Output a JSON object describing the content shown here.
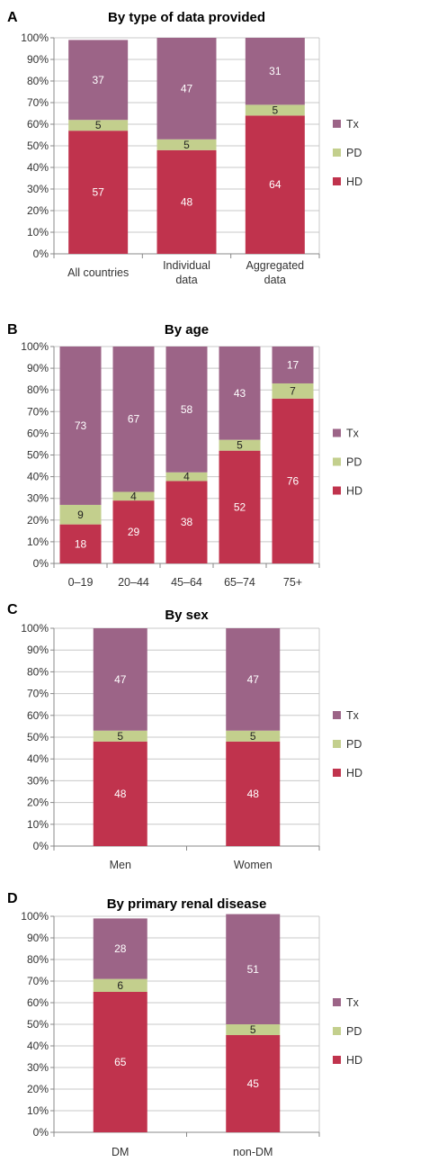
{
  "chart_data": [
    {
      "type": "bar",
      "panel": "A",
      "title": "By type of data provided",
      "categories": [
        "All countries",
        "Individual data",
        "Aggregated data"
      ],
      "category_lines": [
        [
          "All countries"
        ],
        [
          "Individual",
          "data"
        ],
        [
          "Aggregated",
          "data"
        ]
      ],
      "series": [
        {
          "name": "HD",
          "values": [
            57,
            48,
            64
          ]
        },
        {
          "name": "PD",
          "values": [
            5,
            5,
            5
          ]
        },
        {
          "name": "Tx",
          "values": [
            37,
            47,
            31
          ]
        }
      ],
      "ylim": [
        0,
        100
      ],
      "yticks": [
        "0%",
        "10%",
        "20%",
        "30%",
        "40%",
        "50%",
        "60%",
        "70%",
        "80%",
        "90%",
        "100%"
      ],
      "stacked": true,
      "legend": "right"
    },
    {
      "type": "bar",
      "panel": "B",
      "title": "By age",
      "categories": [
        "0–19",
        "20–44",
        "45–64",
        "65–74",
        "75+"
      ],
      "category_lines": [
        [
          "0–19"
        ],
        [
          "20–44"
        ],
        [
          "45–64"
        ],
        [
          "65–74"
        ],
        [
          "75+"
        ]
      ],
      "series": [
        {
          "name": "HD",
          "values": [
            18,
            29,
            38,
            52,
            76
          ]
        },
        {
          "name": "PD",
          "values": [
            9,
            4,
            4,
            5,
            7
          ]
        },
        {
          "name": "Tx",
          "values": [
            73,
            67,
            58,
            43,
            17
          ]
        }
      ],
      "ylim": [
        0,
        100
      ],
      "yticks": [
        "0%",
        "10%",
        "20%",
        "30%",
        "40%",
        "50%",
        "60%",
        "70%",
        "80%",
        "90%",
        "100%"
      ],
      "stacked": true,
      "legend": "right"
    },
    {
      "type": "bar",
      "panel": "C",
      "title": "By sex",
      "categories": [
        "Men",
        "Women"
      ],
      "category_lines": [
        [
          "Men"
        ],
        [
          "Women"
        ]
      ],
      "series": [
        {
          "name": "HD",
          "values": [
            48,
            48
          ]
        },
        {
          "name": "PD",
          "values": [
            5,
            5
          ]
        },
        {
          "name": "Tx",
          "values": [
            47,
            47
          ]
        }
      ],
      "ylim": [
        0,
        100
      ],
      "yticks": [
        "0%",
        "10%",
        "20%",
        "30%",
        "40%",
        "50%",
        "60%",
        "70%",
        "80%",
        "90%",
        "100%"
      ],
      "stacked": true,
      "legend": "right"
    },
    {
      "type": "bar",
      "panel": "D",
      "title": "By primary renal disease",
      "categories": [
        "DM",
        "non-DM"
      ],
      "category_lines": [
        [
          "DM"
        ],
        [
          "non-DM"
        ]
      ],
      "series": [
        {
          "name": "HD",
          "values": [
            65,
            45
          ]
        },
        {
          "name": "PD",
          "values": [
            6,
            5
          ]
        },
        {
          "name": "Tx",
          "values": [
            28,
            51
          ]
        }
      ],
      "ylim": [
        0,
        100
      ],
      "yticks": [
        "0%",
        "10%",
        "20%",
        "30%",
        "40%",
        "50%",
        "60%",
        "70%",
        "80%",
        "90%",
        "100%"
      ],
      "stacked": true,
      "legend": "right"
    }
  ],
  "colors": {
    "HD": "#c0334d",
    "PD": "#c3cf8d",
    "Tx": "#9c6487"
  },
  "legend_order": [
    "Tx",
    "PD",
    "HD"
  ]
}
